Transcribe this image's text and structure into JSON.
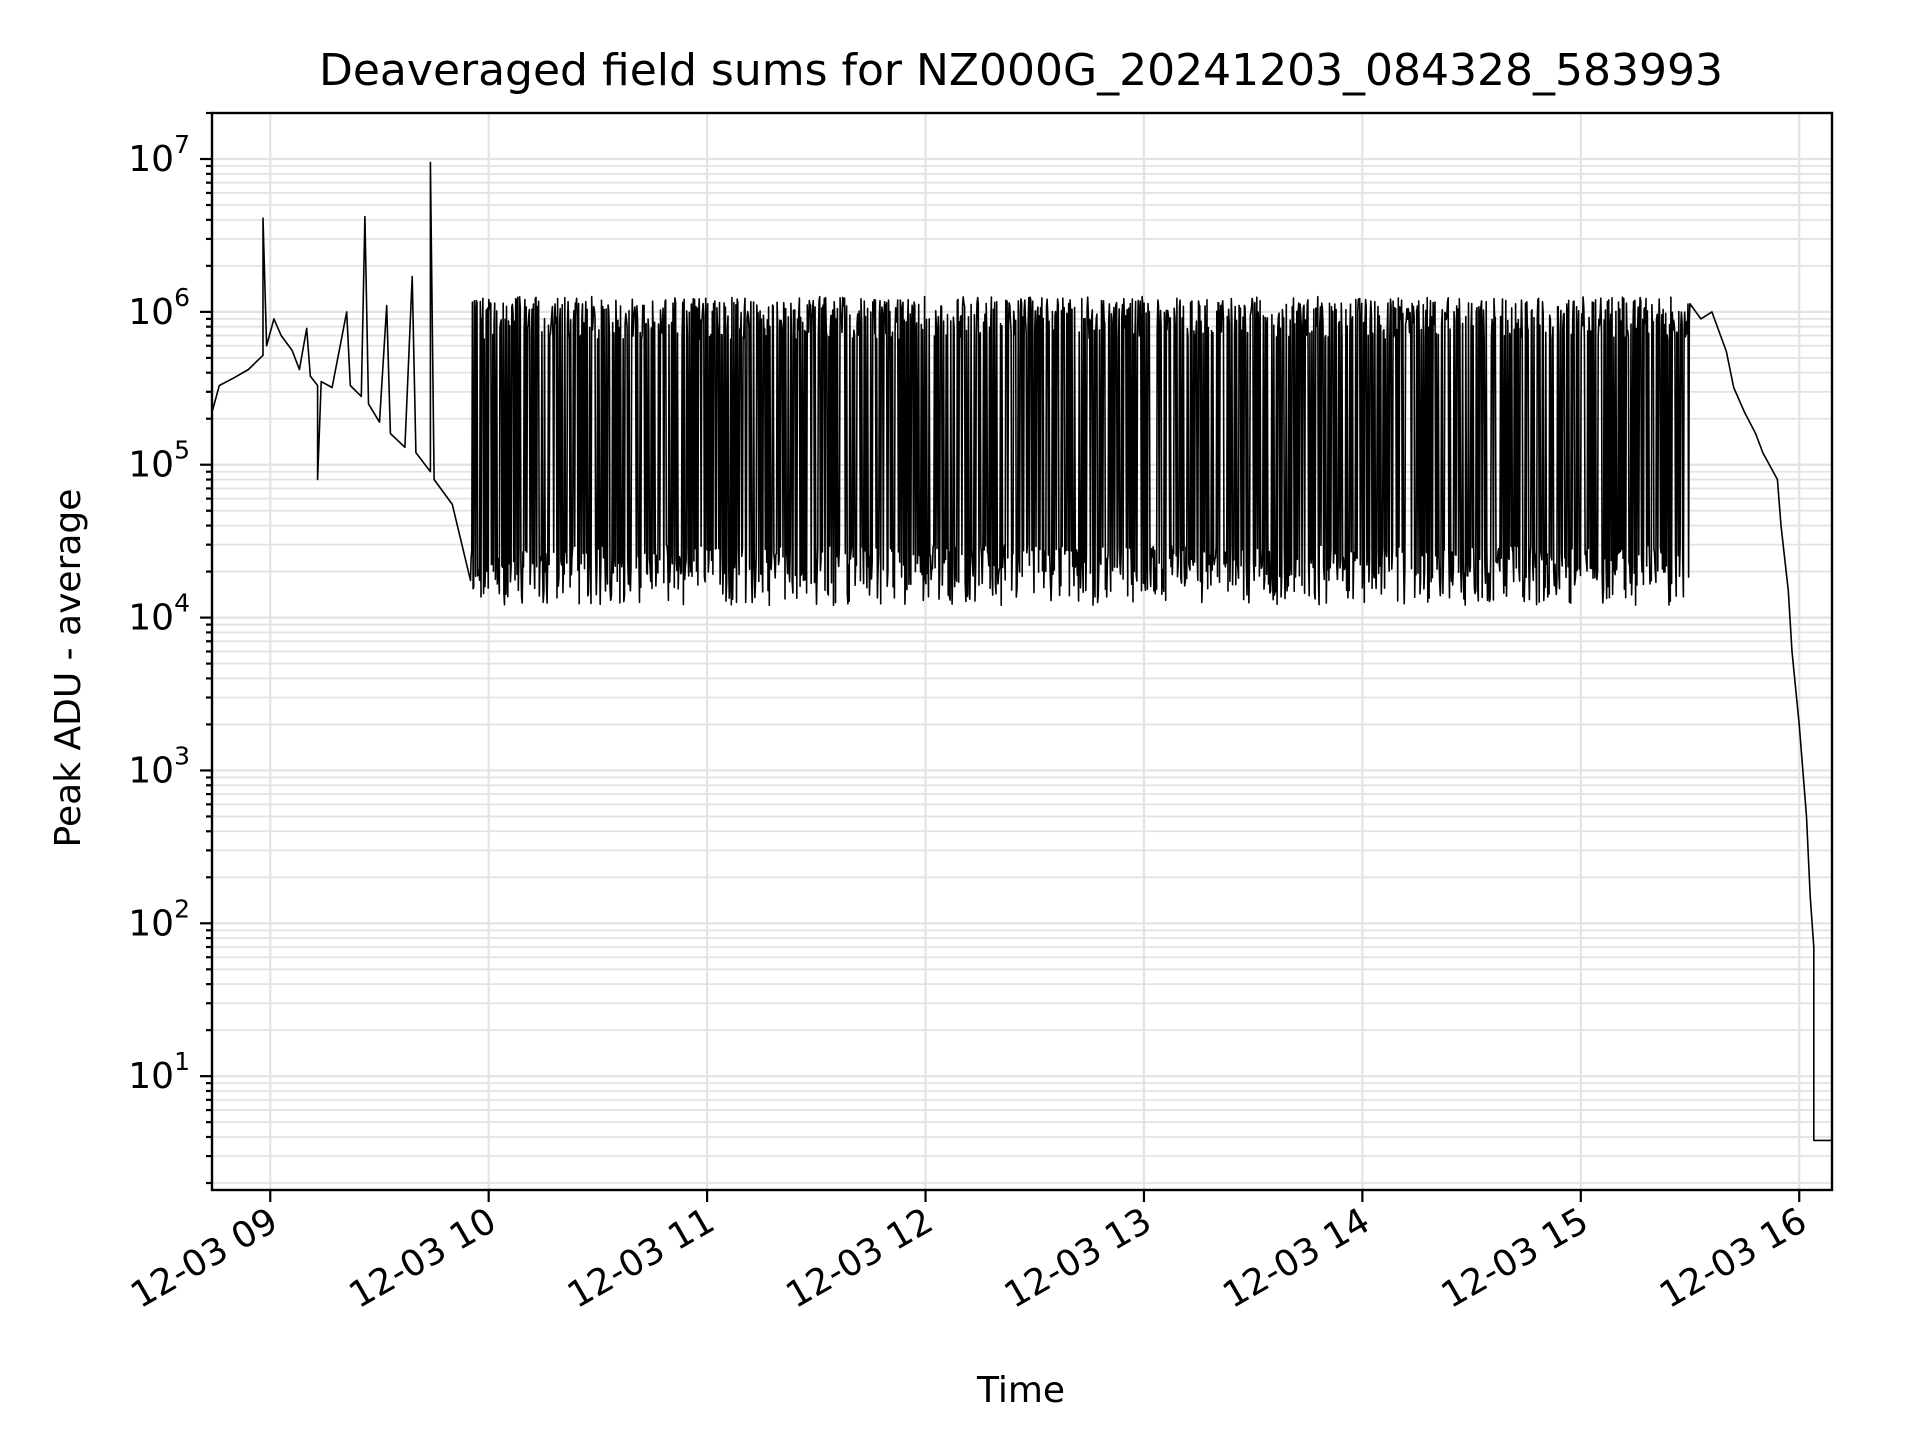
{
  "chart_data": {
    "type": "line",
    "title": "Deaveraged field sums for NZ000G_20241203_084328_583993",
    "xlabel": "Time",
    "ylabel": "Peak ADU - average",
    "yscale": "log",
    "ylim": [
      1.8,
      20000000
    ],
    "xlim": [
      "2024-12-03 08:44",
      "2024-12-03 16:09"
    ],
    "grid": true,
    "x_ticks": [
      {
        "time": "2024-12-03 09:00",
        "label": "12-03 09"
      },
      {
        "time": "2024-12-03 10:00",
        "label": "12-03 10"
      },
      {
        "time": "2024-12-03 11:00",
        "label": "12-03 11"
      },
      {
        "time": "2024-12-03 12:00",
        "label": "12-03 12"
      },
      {
        "time": "2024-12-03 13:00",
        "label": "12-03 13"
      },
      {
        "time": "2024-12-03 14:00",
        "label": "12-03 14"
      },
      {
        "time": "2024-12-03 15:00",
        "label": "12-03 15"
      },
      {
        "time": "2024-12-03 16:00",
        "label": "12-03 16"
      }
    ],
    "y_ticks": [
      {
        "value": 10,
        "base": "10",
        "exp": "1"
      },
      {
        "value": 100,
        "base": "10",
        "exp": "2"
      },
      {
        "value": 1000,
        "base": "10",
        "exp": "3"
      },
      {
        "value": 10000,
        "base": "10",
        "exp": "4"
      },
      {
        "value": 100000,
        "base": "10",
        "exp": "5"
      },
      {
        "value": 1000000,
        "base": "10",
        "exp": "6"
      },
      {
        "value": 10000000,
        "base": "10",
        "exp": "7"
      }
    ],
    "series": [
      {
        "color": "#000000",
        "points": [
          [
            "2024-12-03 08:44",
            220000
          ],
          [
            "2024-12-03 08:46",
            330000
          ],
          [
            "2024-12-03 08:50",
            370000
          ],
          [
            "2024-12-03 08:54",
            420000
          ],
          [
            "2024-12-03 08:58",
            520000
          ],
          [
            "2024-12-03 08:58",
            4100000
          ],
          [
            "2024-12-03 08:59",
            600000
          ],
          [
            "2024-12-03 09:01",
            900000
          ],
          [
            "2024-12-03 09:03",
            700000
          ],
          [
            "2024-12-03 09:06",
            560000
          ],
          [
            "2024-12-03 09:08",
            420000
          ],
          [
            "2024-12-03 09:10",
            780000
          ],
          [
            "2024-12-03 09:11",
            380000
          ],
          [
            "2024-12-03 09:13",
            330000
          ],
          [
            "2024-12-03 09:13",
            80000
          ],
          [
            "2024-12-03 09:14",
            350000
          ],
          [
            "2024-12-03 09:17",
            320000
          ],
          [
            "2024-12-03 09:21",
            1000000
          ],
          [
            "2024-12-03 09:22",
            330000
          ],
          [
            "2024-12-03 09:25",
            280000
          ],
          [
            "2024-12-03 09:26",
            4200000
          ],
          [
            "2024-12-03 09:27",
            250000
          ],
          [
            "2024-12-03 09:30",
            190000
          ],
          [
            "2024-12-03 09:32",
            1100000
          ],
          [
            "2024-12-03 09:33",
            160000
          ],
          [
            "2024-12-03 09:37",
            130000
          ],
          [
            "2024-12-03 09:39",
            1700000
          ],
          [
            "2024-12-03 09:40",
            120000
          ],
          [
            "2024-12-03 09:44",
            90000
          ],
          [
            "2024-12-03 09:44",
            9500000
          ],
          [
            "2024-12-03 09:45",
            80000
          ],
          [
            "2024-12-03 09:50",
            55000
          ],
          [
            "2024-12-03 09:55",
            45000
          ],
          [
            "2024-12-03 10:00",
            40000
          ],
          [
            "2024-12-03 10:05",
            36000
          ],
          [
            "2024-12-03 10:10",
            33000
          ],
          [
            "2024-12-03 10:20",
            30000
          ],
          [
            "2024-12-03 10:30",
            29000
          ],
          [
            "2024-12-03 10:45",
            2000000
          ],
          [
            "2024-12-03 10:46",
            28000
          ],
          [
            "2024-12-03 11:00",
            26000
          ],
          [
            "2024-12-03 11:30",
            24000
          ],
          [
            "2024-12-03 12:00",
            22000
          ],
          [
            "2024-12-03 12:30",
            21000
          ],
          [
            "2024-12-03 13:00",
            21000
          ],
          [
            "2024-12-03 13:30",
            21000
          ],
          [
            "2024-12-03 14:00",
            22000
          ],
          [
            "2024-12-03 14:30",
            30000
          ],
          [
            "2024-12-03 14:50",
            80000
          ],
          [
            "2024-12-03 15:00",
            200000
          ],
          [
            "2024-12-03 15:20",
            350000
          ],
          [
            "2024-12-03 15:30",
            600000
          ],
          [
            "2024-12-03 15:33",
            900000
          ],
          [
            "2024-12-03 15:36",
            1000000
          ],
          [
            "2024-12-03 15:40",
            550000
          ],
          [
            "2024-12-03 15:42",
            320000
          ],
          [
            "2024-12-03 15:45",
            220000
          ],
          [
            "2024-12-03 15:48",
            160000
          ],
          [
            "2024-12-03 15:50",
            120000
          ],
          [
            "2024-12-03 15:54",
            80000
          ],
          [
            "2024-12-03 15:55",
            40000
          ],
          [
            "2024-12-03 15:57",
            15000
          ],
          [
            "2024-12-03 15:58",
            6000
          ],
          [
            "2024-12-03 16:00",
            2000
          ],
          [
            "2024-12-03 16:02",
            500
          ],
          [
            "2024-12-03 16:03",
            150
          ],
          [
            "2024-12-03 16:04",
            70
          ],
          [
            "2024-12-03 16:04",
            3.8
          ],
          [
            "2024-12-03 16:09",
            3.8
          ]
        ],
        "dense_band": {
          "start": "2024-12-03 09:55",
          "end": "2024-12-03 15:30",
          "upper": 1200000,
          "lower_range": [
            12000,
            30000
          ]
        }
      }
    ]
  }
}
